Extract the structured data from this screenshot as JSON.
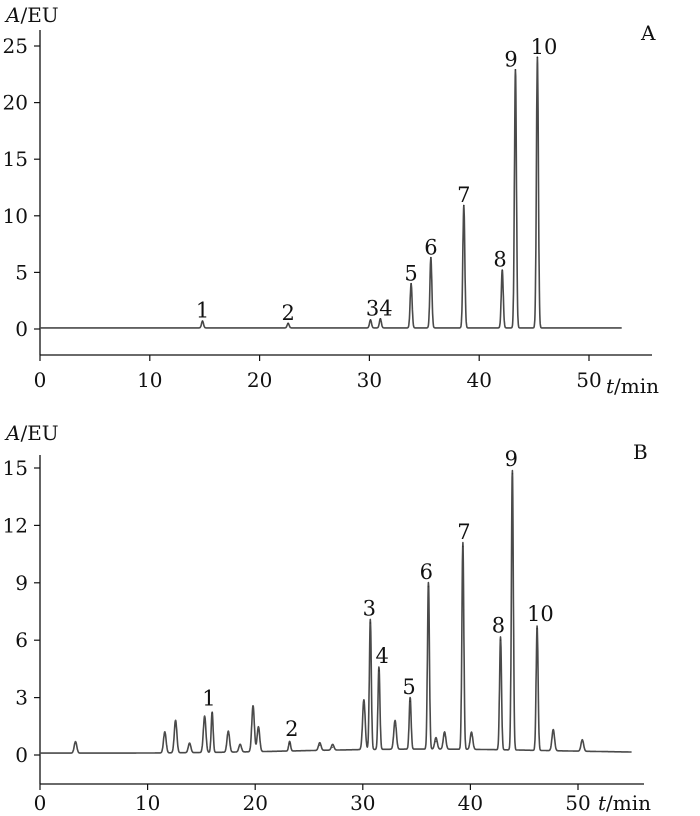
{
  "chart_data": [
    {
      "type": "line",
      "panel_label": "A",
      "ylabel_var": "A",
      "ylabel_unit": "/EU",
      "xlabel_var": "t",
      "xlabel_unit": "/min",
      "xlim": [
        0,
        53
      ],
      "ylim": [
        -1.5,
        26
      ],
      "x_ticks": [
        0,
        10,
        20,
        30,
        40,
        50
      ],
      "y_ticks": [
        0,
        5,
        10,
        15,
        20,
        25
      ],
      "baseline": 0.1,
      "peaks": [
        {
          "label": "1",
          "x": 14.8,
          "y": 0.6
        },
        {
          "label": "2",
          "x": 22.6,
          "y": 0.4
        },
        {
          "label": "3",
          "x": 30.1,
          "y": 0.7
        },
        {
          "label": "4",
          "x": 31.0,
          "y": 0.8
        },
        {
          "label": "5",
          "x": 33.8,
          "y": 3.9
        },
        {
          "label": "6",
          "x": 35.6,
          "y": 6.2
        },
        {
          "label": "7",
          "x": 38.6,
          "y": 10.8
        },
        {
          "label": "8",
          "x": 42.1,
          "y": 5.1
        },
        {
          "label": "9",
          "x": 43.3,
          "y": 22.8
        },
        {
          "label": "10",
          "x": 45.3,
          "y": 23.9
        }
      ],
      "minor_peaks": [],
      "peak_labels": [
        {
          "text": "1",
          "x": 14.8,
          "y": 1.0
        },
        {
          "text": "2",
          "x": 22.6,
          "y": 0.8
        },
        {
          "text": "34",
          "x": 30.9,
          "y": 1.2
        },
        {
          "text": "5",
          "x": 33.8,
          "y": 4.3
        },
        {
          "text": "6",
          "x": 35.6,
          "y": 6.6
        },
        {
          "text": "7",
          "x": 38.6,
          "y": 11.2
        },
        {
          "text": "8",
          "x": 41.9,
          "y": 5.5
        },
        {
          "text": "9",
          "x": 42.9,
          "y": 23.2
        },
        {
          "text": "10",
          "x": 45.9,
          "y": 24.3
        }
      ]
    },
    {
      "type": "line",
      "panel_label": "B",
      "ylabel_var": "A",
      "ylabel_unit": "/EU",
      "xlabel_var": "t",
      "xlabel_unit": "/min",
      "xlim": [
        0,
        55
      ],
      "ylim": [
        -0.8,
        16.2
      ],
      "x_ticks": [
        0,
        10,
        20,
        30,
        40,
        50
      ],
      "y_ticks": [
        0,
        3,
        6,
        9,
        12,
        15
      ],
      "baseline": 0.1,
      "peaks": [
        {
          "label": "1",
          "x": 16.0,
          "y": 2.1
        },
        {
          "label": "2",
          "x": 23.2,
          "y": 0.5
        },
        {
          "label": "3",
          "x": 30.7,
          "y": 6.8
        },
        {
          "label": "4",
          "x": 31.5,
          "y": 4.3
        },
        {
          "label": "5",
          "x": 34.4,
          "y": 2.7
        },
        {
          "label": "6",
          "x": 36.1,
          "y": 8.7
        },
        {
          "label": "7",
          "x": 39.3,
          "y": 10.8
        },
        {
          "label": "8",
          "x": 42.8,
          "y": 5.9
        },
        {
          "label": "9",
          "x": 43.9,
          "y": 14.6
        },
        {
          "label": "10",
          "x": 46.2,
          "y": 6.5
        }
      ],
      "minor_peaks": [
        {
          "x": 3.3,
          "y": 0.6
        },
        {
          "x": 11.6,
          "y": 1.1
        },
        {
          "x": 12.6,
          "y": 1.7
        },
        {
          "x": 13.9,
          "y": 0.5
        },
        {
          "x": 15.3,
          "y": 1.9
        },
        {
          "x": 17.5,
          "y": 1.1
        },
        {
          "x": 18.6,
          "y": 0.4
        },
        {
          "x": 19.8,
          "y": 2.4
        },
        {
          "x": 20.3,
          "y": 1.3
        },
        {
          "x": 26.0,
          "y": 0.4
        },
        {
          "x": 27.2,
          "y": 0.3
        },
        {
          "x": 30.1,
          "y": 2.6
        },
        {
          "x": 33.0,
          "y": 1.5
        },
        {
          "x": 36.8,
          "y": 0.6
        },
        {
          "x": 37.6,
          "y": 0.9
        },
        {
          "x": 40.1,
          "y": 0.9
        },
        {
          "x": 47.7,
          "y": 1.1
        },
        {
          "x": 50.4,
          "y": 0.6
        }
      ],
      "peak_labels": [
        {
          "text": "1",
          "x": 15.7,
          "y": 2.6
        },
        {
          "text": "2",
          "x": 23.4,
          "y": 1.0
        },
        {
          "text": "3",
          "x": 30.6,
          "y": 7.3
        },
        {
          "text": "4",
          "x": 31.8,
          "y": 4.8
        },
        {
          "text": "5",
          "x": 34.3,
          "y": 3.2
        },
        {
          "text": "6",
          "x": 35.9,
          "y": 9.2
        },
        {
          "text": "7",
          "x": 39.4,
          "y": 11.3
        },
        {
          "text": "8",
          "x": 42.6,
          "y": 6.4
        },
        {
          "text": "9",
          "x": 43.8,
          "y": 15.1
        },
        {
          "text": "10",
          "x": 46.5,
          "y": 7.0
        }
      ]
    }
  ]
}
